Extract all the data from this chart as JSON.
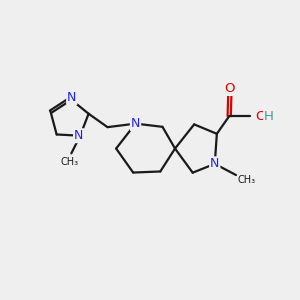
{
  "bg_color": "#efefef",
  "bond_color": "#1a1a1a",
  "N_color": "#2020ff",
  "O_color": "#dd0000",
  "H_color": "#4a9a9a",
  "line_width": 1.6,
  "figsize": [
    3.0,
    3.0
  ],
  "dpi": 100,
  "xlim": [
    0,
    10
  ],
  "ylim": [
    0,
    10
  ]
}
